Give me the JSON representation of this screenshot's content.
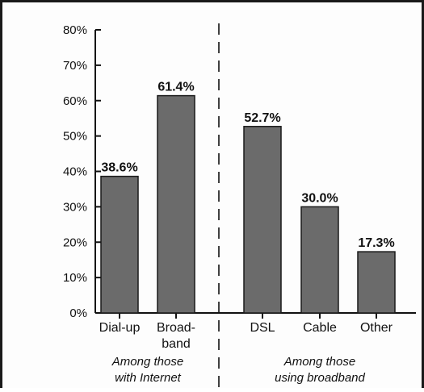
{
  "chart_data": {
    "type": "bar",
    "categories": [
      "Dial-up",
      "Broad-band",
      "DSL",
      "Cable",
      "Other"
    ],
    "category_lines": [
      [
        "Dial-up"
      ],
      [
        "Broad-",
        "band"
      ],
      [
        "DSL"
      ],
      [
        "Cable"
      ],
      [
        "Other"
      ]
    ],
    "values": [
      38.6,
      61.4,
      52.7,
      30.0,
      17.3
    ],
    "value_labels": [
      "38.6%",
      "61.4%",
      "52.7%",
      "30.0%",
      "17.3%"
    ],
    "ylim": [
      0,
      80
    ],
    "y_ticks": [
      0,
      10,
      20,
      30,
      40,
      50,
      60,
      70,
      80
    ],
    "y_tick_labels": [
      "0%",
      "10%",
      "20%",
      "30%",
      "40%",
      "50%",
      "60%",
      "70%",
      "80%"
    ],
    "groups": [
      {
        "lines": [
          "Among those",
          "with Internet"
        ],
        "categories": [
          "Dial-up",
          "Broad-band"
        ]
      },
      {
        "lines": [
          "Among those",
          "using broadband"
        ],
        "categories": [
          "DSL",
          "Cable",
          "Other"
        ]
      }
    ],
    "grid": false,
    "colors": {
      "bar": "#6b6b6b",
      "bar_edge": "#1a1a1a",
      "axis": "#111111"
    }
  }
}
